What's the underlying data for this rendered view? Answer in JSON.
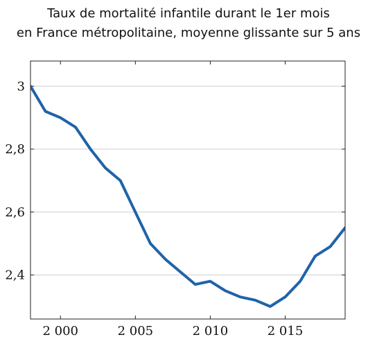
{
  "chart_data": {
    "type": "line",
    "title": "Taux de mortalité infantile durant le 1er mois",
    "subtitle": "en France métropolitaine, moyenne glissante sur 5 ans",
    "xlabel": "",
    "ylabel": "",
    "xlim": [
      1998,
      2019
    ],
    "ylim": [
      2.26,
      3.08
    ],
    "grid": "horizontal",
    "x_ticks": [
      2000,
      2005,
      2010,
      2015
    ],
    "x_tick_labels": [
      "2 000",
      "2 005",
      "2 010",
      "2 015"
    ],
    "y_ticks": [
      2.4,
      2.6,
      2.8,
      3.0
    ],
    "y_tick_labels": [
      "2,4",
      "2,6",
      "2,8",
      "3"
    ],
    "series": [
      {
        "color": "#1f63a8",
        "x": [
          1998,
          1999,
          2000,
          2001,
          2002,
          2003,
          2004,
          2005,
          2006,
          2007,
          2008,
          2009,
          2010,
          2011,
          2012,
          2013,
          2014,
          2015,
          2016,
          2017,
          2018,
          2019
        ],
        "y": [
          3.0,
          2.92,
          2.9,
          2.87,
          2.8,
          2.74,
          2.7,
          2.6,
          2.5,
          2.45,
          2.41,
          2.37,
          2.38,
          2.35,
          2.33,
          2.32,
          2.3,
          2.33,
          2.38,
          2.46,
          2.49,
          2.55
        ]
      }
    ]
  }
}
